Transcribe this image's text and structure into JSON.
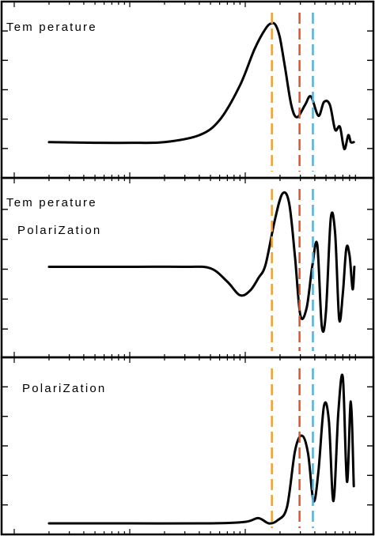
{
  "chart_data": [
    {
      "type": "line",
      "title": "",
      "labels": [
        "Tem perature"
      ],
      "xscale": "log",
      "xlim": [
        1,
        1000
      ],
      "ylim": [
        0,
        1
      ],
      "series": [
        {
          "x": [
            2,
            5,
            10,
            20,
            40,
            60,
            90,
            120,
            150,
            170,
            185,
            200,
            220,
            250,
            280,
            330,
            370,
            430,
            480,
            540,
            600,
            660,
            720,
            780,
            820,
            870
          ],
          "values": [
            0.11,
            0.105,
            0.105,
            0.11,
            0.16,
            0.27,
            0.52,
            0.78,
            0.93,
            0.97,
            0.95,
            0.86,
            0.66,
            0.38,
            0.29,
            0.38,
            0.44,
            0.3,
            0.4,
            0.38,
            0.2,
            0.22,
            0.06,
            0.16,
            0.11,
            0.11
          ]
        }
      ],
      "reference_lines": [
        {
          "x": 170,
          "color": "#f0a030"
        },
        {
          "x": 295,
          "color": "#e05530"
        },
        {
          "x": 385,
          "color": "#55b0dd"
        }
      ]
    },
    {
      "type": "line",
      "title": "",
      "labels": [
        "Tem perature",
        "PolariZation"
      ],
      "xscale": "log",
      "xlim": [
        1,
        1000
      ],
      "ylim": [
        -1,
        1
      ],
      "series": [
        {
          "x": [
            2,
            10,
            30,
            50,
            70,
            90,
            110,
            130,
            150,
            180,
            210,
            240,
            270,
            300,
            340,
            380,
            420,
            460,
            500,
            550,
            600,
            650,
            700,
            750,
            800,
            850,
            880
          ],
          "values": [
            0.0,
            0.0,
            0.0,
            -0.02,
            -0.2,
            -0.38,
            -0.32,
            -0.15,
            0.03,
            0.62,
            0.98,
            0.85,
            0.12,
            -0.65,
            -0.55,
            0.0,
            0.3,
            -0.8,
            -0.6,
            0.65,
            0.45,
            -0.7,
            -0.35,
            0.25,
            0.15,
            -0.3,
            0.0
          ]
        }
      ],
      "reference_lines": [
        {
          "x": 170,
          "color": "#f0a030"
        },
        {
          "x": 295,
          "color": "#e05530"
        },
        {
          "x": 385,
          "color": "#55b0dd"
        }
      ]
    },
    {
      "type": "line",
      "title": "",
      "labels": [
        "PolariZation"
      ],
      "xscale": "log",
      "xlim": [
        1,
        1000
      ],
      "ylim": [
        0,
        1
      ],
      "series": [
        {
          "x": [
            2,
            10,
            50,
            100,
            130,
            160,
            190,
            230,
            270,
            310,
            350,
            390,
            430,
            480,
            530,
            580,
            640,
            700,
            760,
            820,
            870
          ],
          "values": [
            0.0,
            0.0,
            0.0,
            0.01,
            0.035,
            0.0,
            0.02,
            0.11,
            0.49,
            0.59,
            0.47,
            0.15,
            0.35,
            0.79,
            0.69,
            0.15,
            0.75,
            0.98,
            0.28,
            0.82,
            0.25
          ]
        }
      ],
      "reference_lines": [
        {
          "x": 170,
          "color": "#f0a030"
        },
        {
          "x": 295,
          "color": "#e05530"
        },
        {
          "x": 385,
          "color": "#55b0dd"
        }
      ]
    }
  ]
}
